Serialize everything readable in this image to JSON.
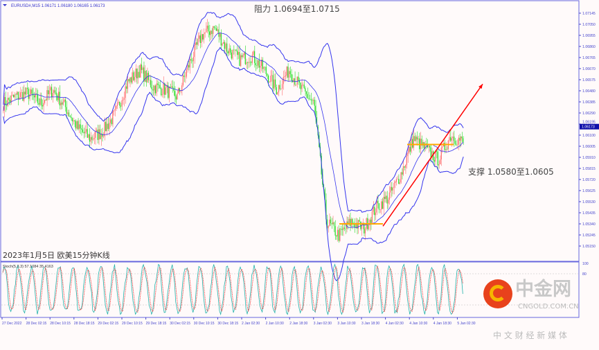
{
  "header": {
    "symbol_line": "EURUSD#,M15  1.06171 1.06180 1.06165 1.06173"
  },
  "caption": "2023年1月5日 欧美15分钟K线",
  "annotations": {
    "resistance": "阻力 1.0694至1.0715",
    "support": "支撑 1.0580至1.0605"
  },
  "watermark": {
    "brand": "中金网",
    "domain": "CNGOLD.COM.CN",
    "slogan": "中 文 财 经 新 媒 体"
  },
  "colors": {
    "bull": "#ff6a6a",
    "bear": "#22dd22",
    "bands": "#3333ee",
    "ma": "#222222",
    "trend": "#ff0000",
    "support": "#ffaa00",
    "stoch_main": "#20b2aa",
    "stoch_signal": "#ff3030",
    "axis": "#4444cc",
    "background": "#fffafa"
  },
  "chart_data": {
    "type": "candlestick",
    "title": "EURUSD#,M15",
    "ohlc_last": {
      "open": 1.06171,
      "high": 1.0618,
      "low": 1.06165,
      "close": 1.06173
    },
    "current_price": "1.06173",
    "close_path": [
      1.0637,
      1.0643,
      1.0646,
      1.0637,
      1.0649,
      1.0634,
      1.0616,
      1.0607,
      1.0613,
      1.0628,
      1.0655,
      1.0666,
      1.0652,
      1.0649,
      1.0643,
      1.0672,
      1.0696,
      1.0702,
      1.0684,
      1.0675,
      1.0678,
      1.0666,
      1.0649,
      1.0666,
      1.0649,
      1.0637,
      1.0536,
      1.0524,
      1.0536,
      1.053,
      1.0548,
      1.0557,
      1.0577,
      1.0607,
      1.0598,
      1.0589,
      1.061,
      1.0604
    ],
    "path_x_dates": "27 Dec 2022 – 5 Jan 02:30",
    "ylim": [
      1.0505,
      1.0724
    ],
    "y_ticks": [
      "1.07145",
      "1.07050",
      "1.06955",
      "1.06860",
      "1.06765",
      "1.06670",
      "1.06575",
      "1.06480",
      "1.06385",
      "1.06290",
      "1.06195",
      "1.06100",
      "1.06005",
      "1.05910",
      "1.05815",
      "1.05720",
      "1.05625",
      "1.05530",
      "1.05435",
      "1.05340",
      "1.05245",
      "1.05150"
    ],
    "x_ticks": [
      "27 Dec 2022",
      "28 Dec 02:15",
      "28 Dec 10:15",
      "28 Dec 18:15",
      "29 Dec 02:15",
      "29 Dec 10:15",
      "29 Dec 18:15",
      "30 Dec 02:15",
      "30 Dec 10:15",
      "30 Dec 18:15",
      "2 Jan 02:30",
      "2 Jan 10:30",
      "2 Jan 18:30",
      "3 Jan 02:30",
      "3 Jan 10:30",
      "3 Jan 18:30",
      "4 Jan 02:30",
      "4 Jan 10:30",
      "4 Jan 18:30",
      "5 Jan 02:30"
    ],
    "indicators": [
      "Bollinger Bands",
      "Moving Average"
    ],
    "support_lines": [
      1.0534,
      1.0602
    ],
    "trendline": {
      "from": 1.0532,
      "to": 1.063
    },
    "stoch": {
      "label": "Stoch(5,3,3) 57.1084 35.4163",
      "main": 57.1084,
      "signal": 35.4163,
      "ylim": [
        0,
        100
      ],
      "y_ticks": [
        "100",
        "80"
      ],
      "levels": [
        80,
        20
      ]
    }
  }
}
